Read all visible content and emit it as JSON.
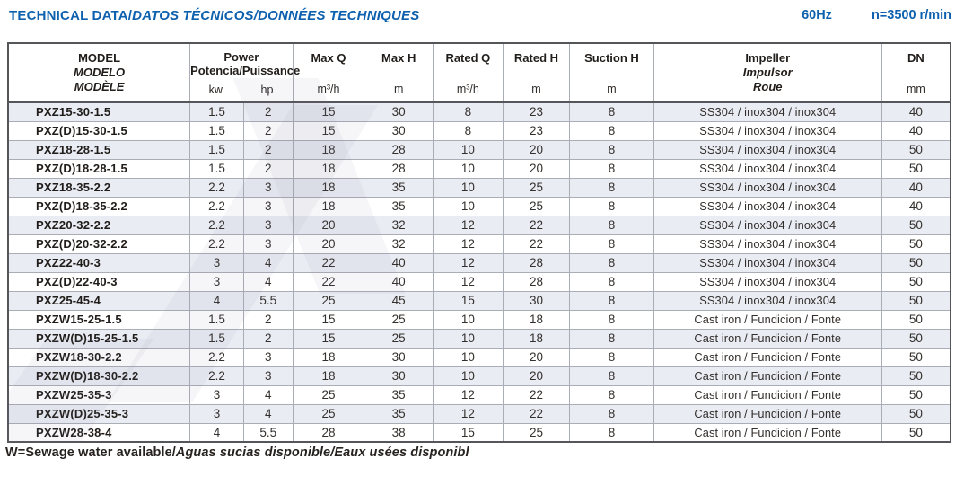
{
  "page": {
    "title_main": "TECHNICAL DATA/",
    "title_italic": "DATOS TÉCNICOS/DONNÉES TECHNIQUES",
    "frequency": "60Hz",
    "speed": "n=3500 r/min",
    "footnote_main": "W=Sewage water available/",
    "footnote_italic": "Aguas sucias disponible/Eaux usées disponibl"
  },
  "colors": {
    "accent_blue": "#0e61ae",
    "row_stripe": "#e9ecf3",
    "text_dark": "#27221f",
    "border_dark": "#55565a",
    "border_light": "#a9adb5"
  },
  "table": {
    "headers": {
      "model": [
        "MODEL",
        "MODELO",
        "MODÈLE"
      ],
      "power": {
        "label": "Power",
        "sub": "Potencia/Puissance",
        "unit_kw": "kw",
        "unit_hp": "hp"
      },
      "max_q": {
        "label": "Max Q",
        "unit": "m³/h"
      },
      "max_h": {
        "label": "Max H",
        "unit": "m"
      },
      "rated_q": {
        "label": "Rated Q",
        "unit": "m³/h"
      },
      "rated_h": {
        "label": "Rated H",
        "unit": "m"
      },
      "suction_h": {
        "label": "Suction H",
        "unit": "m"
      },
      "impeller": [
        "Impeller",
        "Impulsor",
        "Roue"
      ],
      "dn": {
        "label": "DN",
        "unit": "mm"
      }
    },
    "rows": [
      {
        "model": "PXZ15-30-1.5",
        "kw": "1.5",
        "hp": "2",
        "max_q": "15",
        "max_h": "30",
        "rated_q": "8",
        "rated_h": "23",
        "suction_h": "8",
        "impeller": "SS304 / inox304 / inox304",
        "dn": "40"
      },
      {
        "model": "PXZ(D)15-30-1.5",
        "kw": "1.5",
        "hp": "2",
        "max_q": "15",
        "max_h": "30",
        "rated_q": "8",
        "rated_h": "23",
        "suction_h": "8",
        "impeller": "SS304 / inox304 / inox304",
        "dn": "40"
      },
      {
        "model": "PXZ18-28-1.5",
        "kw": "1.5",
        "hp": "2",
        "max_q": "18",
        "max_h": "28",
        "rated_q": "10",
        "rated_h": "20",
        "suction_h": "8",
        "impeller": "SS304 / inox304 / inox304",
        "dn": "50"
      },
      {
        "model": "PXZ(D)18-28-1.5",
        "kw": "1.5",
        "hp": "2",
        "max_q": "18",
        "max_h": "28",
        "rated_q": "10",
        "rated_h": "20",
        "suction_h": "8",
        "impeller": "SS304 / inox304 / inox304",
        "dn": "50"
      },
      {
        "model": "PXZ18-35-2.2",
        "kw": "2.2",
        "hp": "3",
        "max_q": "18",
        "max_h": "35",
        "rated_q": "10",
        "rated_h": "25",
        "suction_h": "8",
        "impeller": "SS304 / inox304 / inox304",
        "dn": "40"
      },
      {
        "model": "PXZ(D)18-35-2.2",
        "kw": "2.2",
        "hp": "3",
        "max_q": "18",
        "max_h": "35",
        "rated_q": "10",
        "rated_h": "25",
        "suction_h": "8",
        "impeller": "SS304 / inox304 / inox304",
        "dn": "40"
      },
      {
        "model": "PXZ20-32-2.2",
        "kw": "2.2",
        "hp": "3",
        "max_q": "20",
        "max_h": "32",
        "rated_q": "12",
        "rated_h": "22",
        "suction_h": "8",
        "impeller": "SS304 / inox304 / inox304",
        "dn": "50"
      },
      {
        "model": "PXZ(D)20-32-2.2",
        "kw": "2.2",
        "hp": "3",
        "max_q": "20",
        "max_h": "32",
        "rated_q": "12",
        "rated_h": "22",
        "suction_h": "8",
        "impeller": "SS304 / inox304 / inox304",
        "dn": "50"
      },
      {
        "model": "PXZ22-40-3",
        "kw": "3",
        "hp": "4",
        "max_q": "22",
        "max_h": "40",
        "rated_q": "12",
        "rated_h": "28",
        "suction_h": "8",
        "impeller": "SS304 / inox304 / inox304",
        "dn": "50"
      },
      {
        "model": "PXZ(D)22-40-3",
        "kw": "3",
        "hp": "4",
        "max_q": "22",
        "max_h": "40",
        "rated_q": "12",
        "rated_h": "28",
        "suction_h": "8",
        "impeller": "SS304 / inox304 / inox304",
        "dn": "50"
      },
      {
        "model": "PXZ25-45-4",
        "kw": "4",
        "hp": "5.5",
        "max_q": "25",
        "max_h": "45",
        "rated_q": "15",
        "rated_h": "30",
        "suction_h": "8",
        "impeller": "SS304 / inox304 / inox304",
        "dn": "50"
      },
      {
        "model": "PXZW15-25-1.5",
        "kw": "1.5",
        "hp": "2",
        "max_q": "15",
        "max_h": "25",
        "rated_q": "10",
        "rated_h": "18",
        "suction_h": "8",
        "impeller": "Cast iron / Fundicion / Fonte",
        "dn": "50"
      },
      {
        "model": "PXZW(D)15-25-1.5",
        "kw": "1.5",
        "hp": "2",
        "max_q": "15",
        "max_h": "25",
        "rated_q": "10",
        "rated_h": "18",
        "suction_h": "8",
        "impeller": "Cast iron / Fundicion / Fonte",
        "dn": "50"
      },
      {
        "model": "PXZW18-30-2.2",
        "kw": "2.2",
        "hp": "3",
        "max_q": "18",
        "max_h": "30",
        "rated_q": "10",
        "rated_h": "20",
        "suction_h": "8",
        "impeller": "Cast iron / Fundicion / Fonte",
        "dn": "50"
      },
      {
        "model": "PXZW(D)18-30-2.2",
        "kw": "2.2",
        "hp": "3",
        "max_q": "18",
        "max_h": "30",
        "rated_q": "10",
        "rated_h": "20",
        "suction_h": "8",
        "impeller": "Cast iron / Fundicion / Fonte",
        "dn": "50"
      },
      {
        "model": "PXZW25-35-3",
        "kw": "3",
        "hp": "4",
        "max_q": "25",
        "max_h": "35",
        "rated_q": "12",
        "rated_h": "22",
        "suction_h": "8",
        "impeller": "Cast iron / Fundicion / Fonte",
        "dn": "50"
      },
      {
        "model": "PXZW(D)25-35-3",
        "kw": "3",
        "hp": "4",
        "max_q": "25",
        "max_h": "35",
        "rated_q": "12",
        "rated_h": "22",
        "suction_h": "8",
        "impeller": "Cast iron / Fundicion / Fonte",
        "dn": "50"
      },
      {
        "model": "PXZW28-38-4",
        "kw": "4",
        "hp": "5.5",
        "max_q": "28",
        "max_h": "38",
        "rated_q": "15",
        "rated_h": "25",
        "suction_h": "8",
        "impeller": "Cast iron / Fundicion / Fonte",
        "dn": "50"
      }
    ]
  }
}
